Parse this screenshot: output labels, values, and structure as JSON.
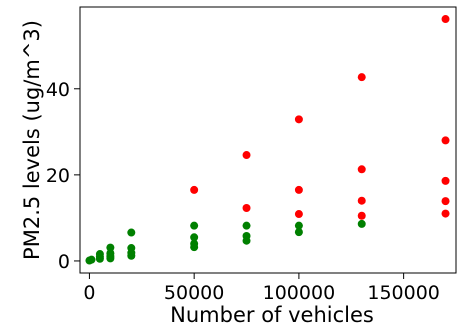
{
  "chart_data": {
    "type": "scatter",
    "title": "",
    "xlabel": "Number of vehicles",
    "ylabel": "PM2.5 levels (ug/m^3)",
    "xlim": [
      -4500,
      175000
    ],
    "ylim": [
      -2.8,
      59
    ],
    "grid": false,
    "legend": "none",
    "x_ticks": [
      0,
      50000,
      100000,
      150000
    ],
    "x_tick_labels": [
      "0",
      "50000",
      "100000",
      "150000"
    ],
    "y_ticks": [
      0,
      20,
      40
    ],
    "y_tick_labels": [
      "0",
      "20",
      "40"
    ],
    "series": [
      {
        "color": "#ff0000",
        "points": [
          {
            "x": 50000,
            "y": 16.5
          },
          {
            "x": 75000,
            "y": 12.3
          },
          {
            "x": 75000,
            "y": 24.6
          },
          {
            "x": 100000,
            "y": 10.9
          },
          {
            "x": 100000,
            "y": 16.5
          },
          {
            "x": 100000,
            "y": 32.9
          },
          {
            "x": 130000,
            "y": 10.5
          },
          {
            "x": 130000,
            "y": 14.0
          },
          {
            "x": 130000,
            "y": 21.3
          },
          {
            "x": 130000,
            "y": 42.7
          },
          {
            "x": 170000,
            "y": 11.0
          },
          {
            "x": 170000,
            "y": 13.9
          },
          {
            "x": 170000,
            "y": 18.6
          },
          {
            "x": 170000,
            "y": 28.0
          },
          {
            "x": 170000,
            "y": 56.2
          }
        ]
      },
      {
        "color": "#008000",
        "points": [
          {
            "x": 0,
            "y": 0.1
          },
          {
            "x": 1000,
            "y": 0.3
          },
          {
            "x": 5000,
            "y": 0.5
          },
          {
            "x": 5000,
            "y": 1.0
          },
          {
            "x": 5000,
            "y": 1.6
          },
          {
            "x": 10000,
            "y": 0.6
          },
          {
            "x": 10000,
            "y": 1.1
          },
          {
            "x": 10000,
            "y": 1.8
          },
          {
            "x": 10000,
            "y": 3.1
          },
          {
            "x": 20000,
            "y": 1.2
          },
          {
            "x": 20000,
            "y": 1.9
          },
          {
            "x": 20000,
            "y": 3.0
          },
          {
            "x": 20000,
            "y": 6.6
          },
          {
            "x": 50000,
            "y": 3.2
          },
          {
            "x": 50000,
            "y": 4.0
          },
          {
            "x": 50000,
            "y": 5.5
          },
          {
            "x": 50000,
            "y": 8.2
          },
          {
            "x": 75000,
            "y": 4.7
          },
          {
            "x": 75000,
            "y": 5.8
          },
          {
            "x": 75000,
            "y": 8.2
          },
          {
            "x": 100000,
            "y": 6.7
          },
          {
            "x": 100000,
            "y": 8.2
          },
          {
            "x": 130000,
            "y": 8.6
          }
        ]
      }
    ]
  }
}
